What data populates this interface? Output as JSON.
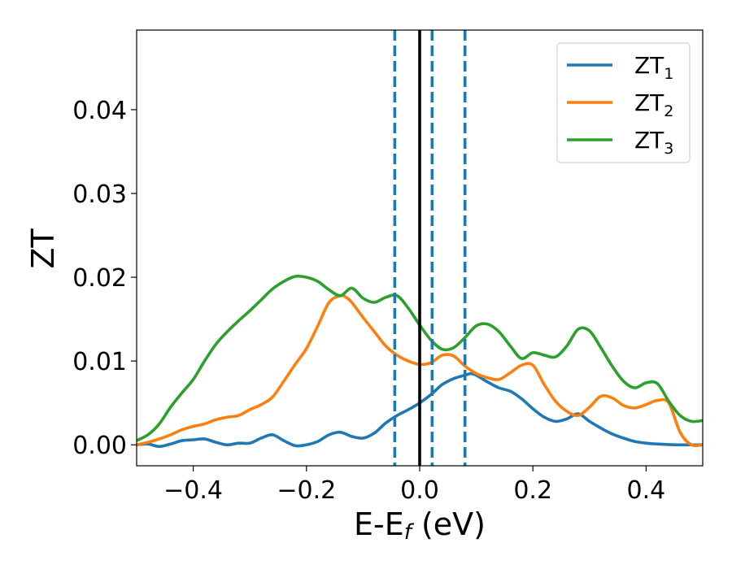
{
  "chart_data": {
    "type": "line",
    "xlabel": "E-E",
    "xlabel_sub": "f",
    "xlabel_unit": " (eV)",
    "ylabel": "ZT",
    "xlim": [
      -0.5,
      0.5
    ],
    "ylim": [
      -0.0025,
      0.0495
    ],
    "xticks": [
      -0.4,
      -0.2,
      0.0,
      0.2,
      0.4
    ],
    "xtick_labels": [
      "−0.4",
      "−0.2",
      "0.0",
      "0.2",
      "0.4"
    ],
    "yticks": [
      0.0,
      0.01,
      0.02,
      0.03,
      0.04
    ],
    "ytick_labels": [
      "0.00",
      "0.01",
      "0.02",
      "0.03",
      "0.04"
    ],
    "legend_position": "top-right",
    "grid": false,
    "vlines": [
      {
        "x": -0.044,
        "style": "dashed",
        "color": "#1f77b4"
      },
      {
        "x": 0.0,
        "style": "solid",
        "color": "#000000"
      },
      {
        "x": 0.022,
        "style": "dashed",
        "color": "#1f77b4"
      },
      {
        "x": 0.08,
        "style": "dashed",
        "color": "#1f77b4"
      }
    ],
    "series": [
      {
        "name": "ZT",
        "name_sub": "1",
        "color": "#1f77b4",
        "x": [
          -0.5,
          -0.48,
          -0.46,
          -0.44,
          -0.42,
          -0.4,
          -0.38,
          -0.36,
          -0.34,
          -0.32,
          -0.3,
          -0.28,
          -0.26,
          -0.24,
          -0.22,
          -0.2,
          -0.18,
          -0.16,
          -0.14,
          -0.12,
          -0.1,
          -0.08,
          -0.06,
          -0.04,
          -0.02,
          0.0,
          0.02,
          0.04,
          0.06,
          0.08,
          0.09,
          0.1,
          0.12,
          0.14,
          0.16,
          0.18,
          0.2,
          0.22,
          0.24,
          0.26,
          0.28,
          0.3,
          0.32,
          0.34,
          0.36,
          0.38,
          0.4,
          0.42,
          0.45,
          0.5
        ],
        "y": [
          0.0,
          0.0001,
          -0.0002,
          0.0001,
          0.0005,
          0.0006,
          0.0007,
          0.0003,
          0.0,
          0.0002,
          0.0002,
          0.0008,
          0.0012,
          0.0005,
          -0.0001,
          0.0,
          0.0004,
          0.0012,
          0.0015,
          0.001,
          0.0008,
          0.0014,
          0.0026,
          0.0035,
          0.0042,
          0.005,
          0.006,
          0.0072,
          0.0079,
          0.0083,
          0.0085,
          0.0083,
          0.0075,
          0.0068,
          0.0064,
          0.0055,
          0.0043,
          0.0033,
          0.0028,
          0.0031,
          0.0037,
          0.0028,
          0.002,
          0.0013,
          0.0008,
          0.0004,
          0.0002,
          0.0001,
          0.0,
          0.0
        ]
      },
      {
        "name": "ZT",
        "name_sub": "2",
        "color": "#ff7f0e",
        "x": [
          -0.5,
          -0.48,
          -0.46,
          -0.44,
          -0.42,
          -0.4,
          -0.38,
          -0.36,
          -0.34,
          -0.32,
          -0.3,
          -0.28,
          -0.26,
          -0.24,
          -0.22,
          -0.2,
          -0.18,
          -0.16,
          -0.14,
          -0.13,
          -0.12,
          -0.1,
          -0.08,
          -0.06,
          -0.04,
          -0.02,
          0.0,
          0.02,
          0.04,
          0.06,
          0.08,
          0.1,
          0.12,
          0.14,
          0.16,
          0.18,
          0.2,
          0.22,
          0.24,
          0.26,
          0.28,
          0.3,
          0.32,
          0.34,
          0.36,
          0.38,
          0.4,
          0.42,
          0.44,
          0.46,
          0.48,
          0.5
        ],
        "y": [
          0.0,
          0.0003,
          0.0007,
          0.0012,
          0.0018,
          0.0022,
          0.0025,
          0.003,
          0.0033,
          0.0035,
          0.0042,
          0.0048,
          0.0057,
          0.0076,
          0.0096,
          0.0115,
          0.0142,
          0.017,
          0.0178,
          0.0176,
          0.017,
          0.0152,
          0.0135,
          0.0118,
          0.0107,
          0.01,
          0.0096,
          0.0098,
          0.0107,
          0.0106,
          0.0094,
          0.0085,
          0.008,
          0.0078,
          0.0086,
          0.0095,
          0.0095,
          0.0072,
          0.0052,
          0.004,
          0.0035,
          0.0045,
          0.0058,
          0.0056,
          0.0047,
          0.0044,
          0.0048,
          0.0053,
          0.005,
          0.0015,
          0.0,
          0.0
        ]
      },
      {
        "name": "ZT",
        "name_sub": "3",
        "color": "#2ca02c",
        "x": [
          -0.5,
          -0.48,
          -0.46,
          -0.44,
          -0.42,
          -0.4,
          -0.38,
          -0.36,
          -0.34,
          -0.32,
          -0.3,
          -0.28,
          -0.26,
          -0.24,
          -0.22,
          -0.2,
          -0.18,
          -0.16,
          -0.14,
          -0.12,
          -0.1,
          -0.08,
          -0.06,
          -0.04,
          -0.02,
          0.0,
          0.02,
          0.04,
          0.06,
          0.08,
          0.1,
          0.12,
          0.14,
          0.16,
          0.18,
          0.2,
          0.22,
          0.24,
          0.26,
          0.28,
          0.3,
          0.32,
          0.34,
          0.36,
          0.38,
          0.4,
          0.42,
          0.44,
          0.46,
          0.48,
          0.5
        ],
        "y": [
          0.0005,
          0.0012,
          0.0025,
          0.0045,
          0.0062,
          0.0078,
          0.01,
          0.012,
          0.0135,
          0.0148,
          0.016,
          0.0173,
          0.0186,
          0.0195,
          0.0201,
          0.02,
          0.0195,
          0.0185,
          0.0178,
          0.0187,
          0.0175,
          0.017,
          0.0176,
          0.0178,
          0.0163,
          0.0143,
          0.0125,
          0.0114,
          0.0116,
          0.0128,
          0.0142,
          0.0144,
          0.0135,
          0.0118,
          0.0103,
          0.011,
          0.0107,
          0.0105,
          0.0118,
          0.0138,
          0.0136,
          0.0116,
          0.0094,
          0.0076,
          0.0068,
          0.0074,
          0.0073,
          0.0052,
          0.0035,
          0.0028,
          0.0029
        ]
      }
    ]
  }
}
